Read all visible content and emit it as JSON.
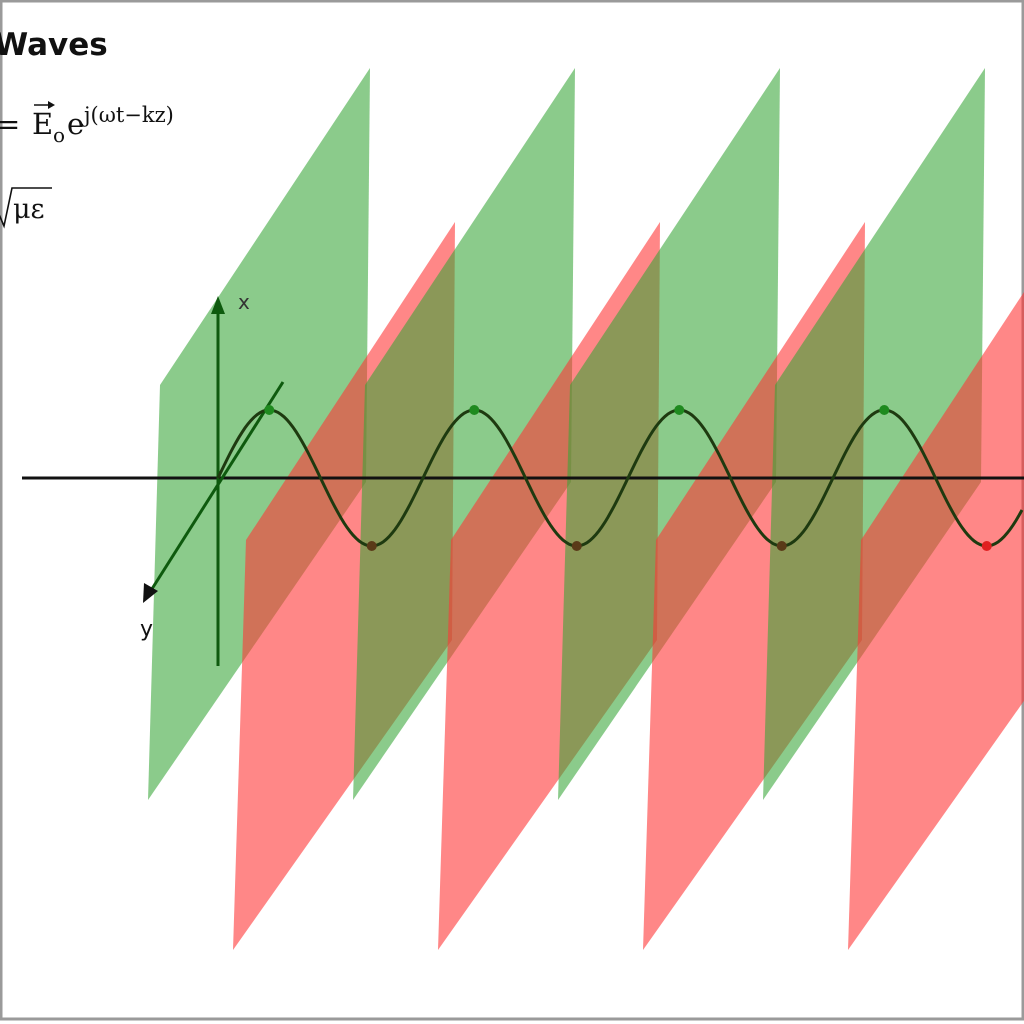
{
  "title": "Waves",
  "equation_field": {
    "equals": "=",
    "field": "E",
    "field_sub": "o",
    "base": "e",
    "exponent": "j(ωt−kz)"
  },
  "equation_speed": {
    "radicand": "με"
  },
  "axes": {
    "x": "x",
    "y": "y"
  }
}
